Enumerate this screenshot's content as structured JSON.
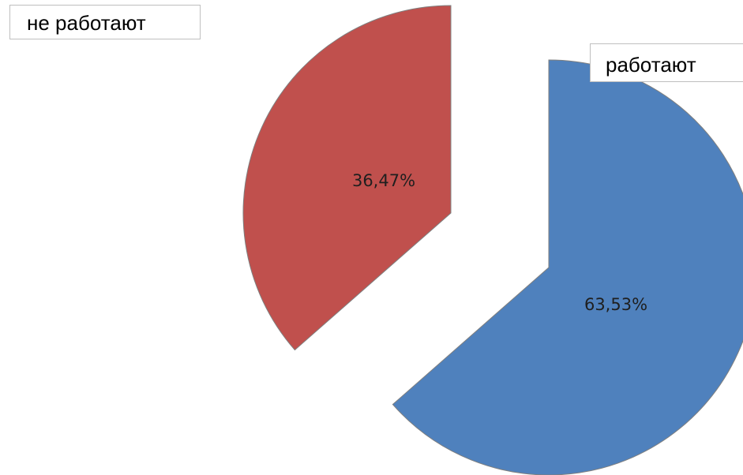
{
  "chart_data": {
    "type": "pie",
    "title": "",
    "slices": [
      {
        "name": "работают",
        "value": 63.53,
        "label": "63,53%",
        "color": "#4f81bd"
      },
      {
        "name": "не работают",
        "value": 36.47,
        "label": "36,47%",
        "color": "#c0504d"
      }
    ],
    "exploded": true,
    "legend": "slice-labels"
  }
}
